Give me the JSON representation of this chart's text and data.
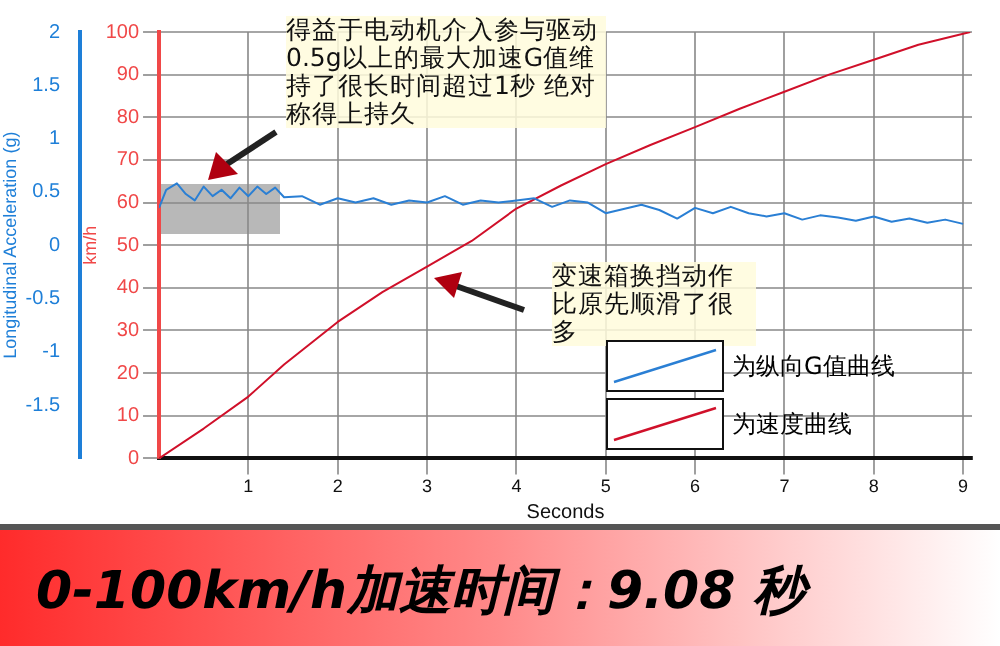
{
  "chart_data": {
    "type": "line",
    "title": "0-100km/h加速时间：9.08 秒",
    "xlabel": "Seconds",
    "ylabel": "km/h",
    "y2label": "Longitudinal Acceleration (g)",
    "annotations": [
      "得益于电动机介入参与驱动0.5g以上的最大加速G值维持了很长时间超过1秒 绝对称得上持久",
      "变速箱换挡动作比原先顺滑了很多"
    ],
    "series": [
      {
        "name": "为纵向G值曲线",
        "color": "#2a7fd4",
        "axis": "y2",
        "x": [
          0,
          0.08,
          0.2,
          0.3,
          0.4,
          0.5,
          0.6,
          0.7,
          0.8,
          0.9,
          1.0,
          1.1,
          1.2,
          1.3,
          1.4,
          1.6,
          1.8,
          2.0,
          2.2,
          2.4,
          2.6,
          2.8,
          3.0,
          3.2,
          3.4,
          3.6,
          3.8,
          4.0,
          4.2,
          4.4,
          4.6,
          4.8,
          5.0,
          5.2,
          5.4,
          5.6,
          5.8,
          6.0,
          6.2,
          6.4,
          6.6,
          6.8,
          7.0,
          7.2,
          7.4,
          7.6,
          7.8,
          8.0,
          8.2,
          8.4,
          8.6,
          8.8,
          9.0
        ],
        "values": [
          0.35,
          0.52,
          0.58,
          0.48,
          0.42,
          0.55,
          0.46,
          0.52,
          0.44,
          0.54,
          0.46,
          0.55,
          0.48,
          0.54,
          0.45,
          0.46,
          0.38,
          0.44,
          0.4,
          0.44,
          0.38,
          0.42,
          0.4,
          0.46,
          0.38,
          0.42,
          0.4,
          0.42,
          0.44,
          0.36,
          0.42,
          0.4,
          0.3,
          0.34,
          0.38,
          0.33,
          0.25,
          0.35,
          0.3,
          0.36,
          0.3,
          0.27,
          0.3,
          0.24,
          0.28,
          0.26,
          0.23,
          0.27,
          0.22,
          0.25,
          0.21,
          0.24,
          0.2
        ]
      },
      {
        "name": "为速度曲线",
        "color": "#d0102a",
        "x": [
          0,
          0.5,
          1.0,
          1.4,
          2.0,
          2.5,
          3.0,
          3.5,
          4.0,
          4.5,
          5.0,
          5.5,
          6.0,
          6.5,
          7.0,
          7.5,
          8.0,
          8.5,
          9.08
        ],
        "values": [
          0,
          7,
          14.5,
          22,
          32,
          39,
          45,
          51,
          58.6,
          64,
          69,
          73.5,
          77.7,
          82,
          86,
          90,
          93.5,
          97,
          100
        ]
      }
    ],
    "xlim": [
      0,
      9.1
    ],
    "xticks": [
      1,
      2,
      3,
      4,
      5,
      6,
      7,
      8,
      9
    ],
    "ylim": [
      0,
      100
    ],
    "yticks": [
      0,
      10,
      20,
      30,
      40,
      50,
      60,
      70,
      80,
      90,
      100
    ],
    "y2lim": [
      -2,
      2
    ],
    "y2ticks": [
      -1.5,
      -1,
      -0.5,
      0,
      0.5,
      1,
      1.5,
      2
    ],
    "grid": true,
    "legend": "bottom right",
    "marker": "none",
    "line_style": "solid"
  }
}
